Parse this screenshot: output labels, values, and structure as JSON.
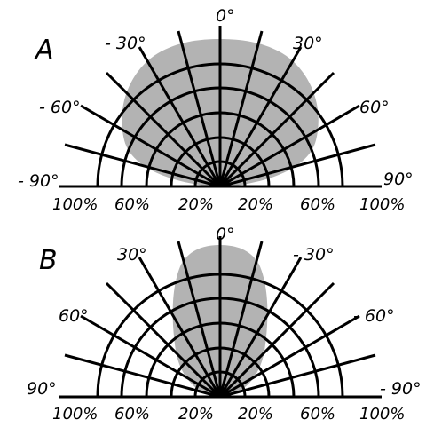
{
  "panels": [
    {
      "letter": "A",
      "angle_labels": [
        "0°",
        "30°",
        "60°",
        "90°",
        "- 30°",
        "- 60°",
        "- 90°"
      ],
      "percent_labels": [
        "100%",
        "60%",
        "20%",
        "20%",
        "60%",
        "100%"
      ],
      "pattern_color": "#b3b3b3"
    },
    {
      "letter": "B",
      "angle_labels": [
        "0°",
        "- 30°",
        "- 60°",
        "- 90°",
        "30°",
        "60°",
        "90°"
      ],
      "percent_labels": [
        "100%",
        "60%",
        "20%",
        "20%",
        "60%",
        "100%"
      ],
      "pattern_color": "#b3b3b3"
    }
  ]
}
